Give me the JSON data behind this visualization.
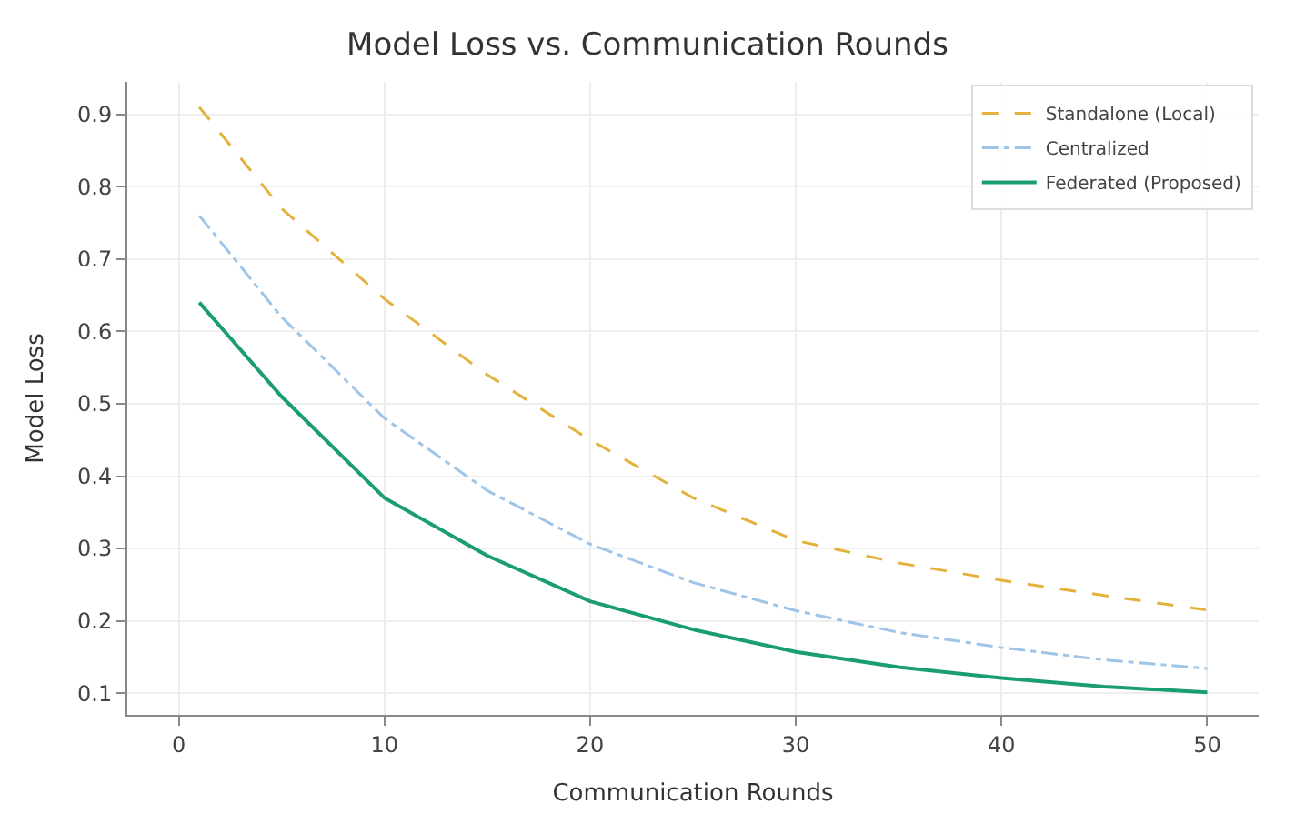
{
  "chart_data": {
    "type": "line",
    "title": "Model Loss vs. Communication Rounds",
    "xlabel": "Communication Rounds",
    "ylabel": "Model Loss",
    "x": [
      1,
      5,
      10,
      15,
      20,
      25,
      30,
      35,
      40,
      45,
      50
    ],
    "series": [
      {
        "name": "Standalone (Local)",
        "color": "#e3b23c",
        "line_style": "dashed",
        "values": [
          0.91,
          0.77,
          0.645,
          0.54,
          0.45,
          0.37,
          0.311,
          0.28,
          0.256,
          0.235,
          0.215
        ]
      },
      {
        "name": "Centralized",
        "color": "#9ec5e8",
        "line_style": "dashdot",
        "values": [
          0.76,
          0.62,
          0.48,
          0.38,
          0.306,
          0.253,
          0.214,
          0.184,
          0.163,
          0.146,
          0.134
        ]
      },
      {
        "name": "Federated (Proposed)",
        "color": "#1a9e6e",
        "line_style": "solid",
        "values": [
          0.64,
          0.51,
          0.37,
          0.29,
          0.227,
          0.188,
          0.157,
          0.136,
          0.121,
          0.109,
          0.101
        ]
      }
    ],
    "xlim": [
      -2.5,
      52.5
    ],
    "xticks": [
      0,
      10,
      20,
      30,
      40,
      50
    ],
    "ylim": [
      0.07,
      0.945
    ],
    "yticks": [
      0.1,
      0.2,
      0.3,
      0.4,
      0.5,
      0.6,
      0.7,
      0.8,
      0.9
    ],
    "grid": true,
    "legend": "top right",
    "marker": "none"
  }
}
